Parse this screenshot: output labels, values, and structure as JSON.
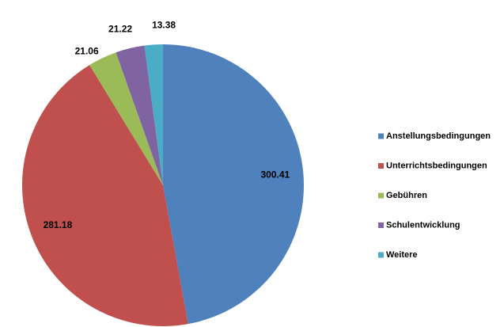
{
  "chart_data": {
    "type": "pie",
    "categories": [
      "Anstellungsbedingungen",
      "Unterrichtsbedingungen",
      "Gebühren",
      "Schulentwicklung",
      "Weitere"
    ],
    "values": [
      300.41,
      281.18,
      21.06,
      21.22,
      13.38
    ],
    "colors": [
      "#4f81bd",
      "#c0504d",
      "#9bbb59",
      "#8064a2",
      "#4bacc6"
    ],
    "legend": "right"
  }
}
